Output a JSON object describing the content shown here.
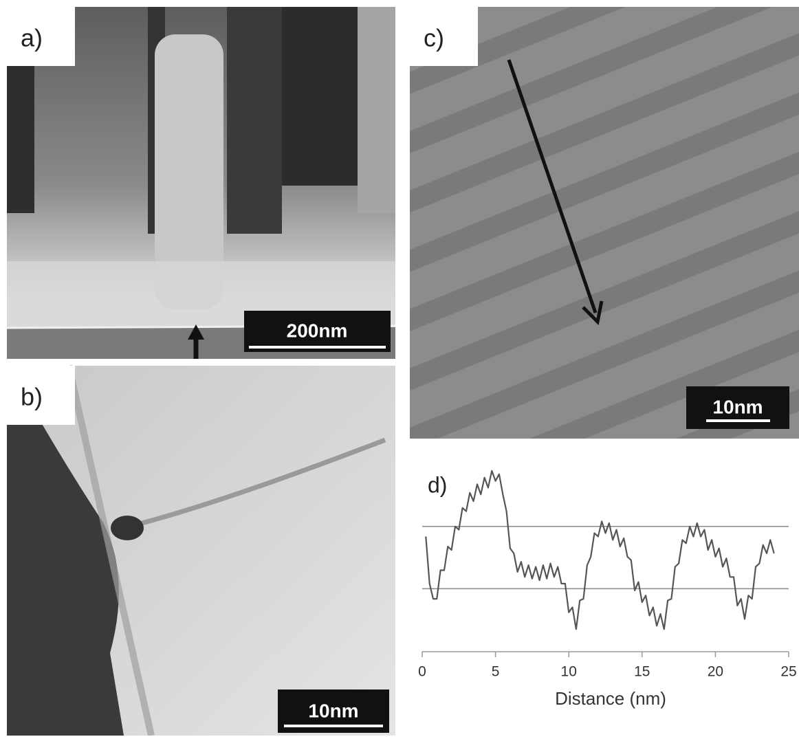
{
  "panels": [
    {
      "label": "a)",
      "scale_bar": "200nm"
    },
    {
      "label": "b)",
      "scale_bar": "10nm"
    },
    {
      "label": "c)",
      "scale_bar": "10nm"
    }
  ],
  "chart_data": {
    "type": "line",
    "label": "d)",
    "x_label": "Distance (nm)",
    "x": [
      0.25,
      0.5,
      0.75,
      1,
      1.25,
      1.5,
      1.75,
      2,
      2.25,
      2.5,
      2.75,
      3,
      3.25,
      3.5,
      3.75,
      4,
      4.25,
      4.5,
      4.75,
      5,
      5.25,
      5.5,
      5.75,
      6,
      6.25,
      6.5,
      6.75,
      7,
      7.25,
      7.5,
      7.75,
      8,
      8.25,
      8.5,
      8.75,
      9,
      9.25,
      9.5,
      9.75,
      10,
      10.25,
      10.5,
      10.75,
      11,
      11.25,
      11.5,
      11.75,
      12,
      12.25,
      12.5,
      12.75,
      13,
      13.25,
      13.5,
      13.75,
      14,
      14.25,
      14.5,
      14.75,
      15,
      15.25,
      15.5,
      15.75,
      16,
      16.25,
      16.5,
      16.75,
      17,
      17.25,
      17.5,
      17.75,
      18,
      18.25,
      18.5,
      18.75,
      19,
      19.25,
      19.5,
      19.75,
      20,
      20.25,
      20.5,
      20.75,
      21,
      21.25,
      21.5,
      21.75,
      22,
      22.25,
      22.5,
      22.75,
      23,
      23.25,
      23.5,
      23.75,
      24
    ],
    "values": [
      59,
      31,
      22,
      22,
      39,
      39,
      53,
      51,
      65,
      63,
      76,
      74,
      85,
      80,
      90,
      84,
      94,
      88,
      98,
      92,
      96,
      84,
      74,
      52,
      49,
      38,
      44,
      35,
      42,
      34,
      41,
      33,
      42,
      34,
      43,
      35,
      41,
      31,
      31,
      14,
      17,
      4,
      21,
      22,
      42,
      47,
      61,
      59,
      68,
      61,
      67,
      57,
      63,
      53,
      58,
      47,
      45,
      27,
      32,
      20,
      24,
      12,
      17,
      6,
      13,
      4,
      21,
      22,
      41,
      43,
      57,
      55,
      65,
      59,
      67,
      59,
      63,
      51,
      57,
      47,
      52,
      41,
      46,
      35,
      35,
      18,
      22,
      10,
      24,
      22,
      41,
      43,
      54,
      49,
      57,
      49
    ],
    "color": "#555555",
    "xlim": [
      0,
      25
    ],
    "xticks": [
      0,
      5,
      10,
      15,
      20,
      25
    ],
    "ylim": [
      0,
      100
    ],
    "reference_lines": [
      28,
      65
    ],
    "reference_color": "#888888"
  }
}
